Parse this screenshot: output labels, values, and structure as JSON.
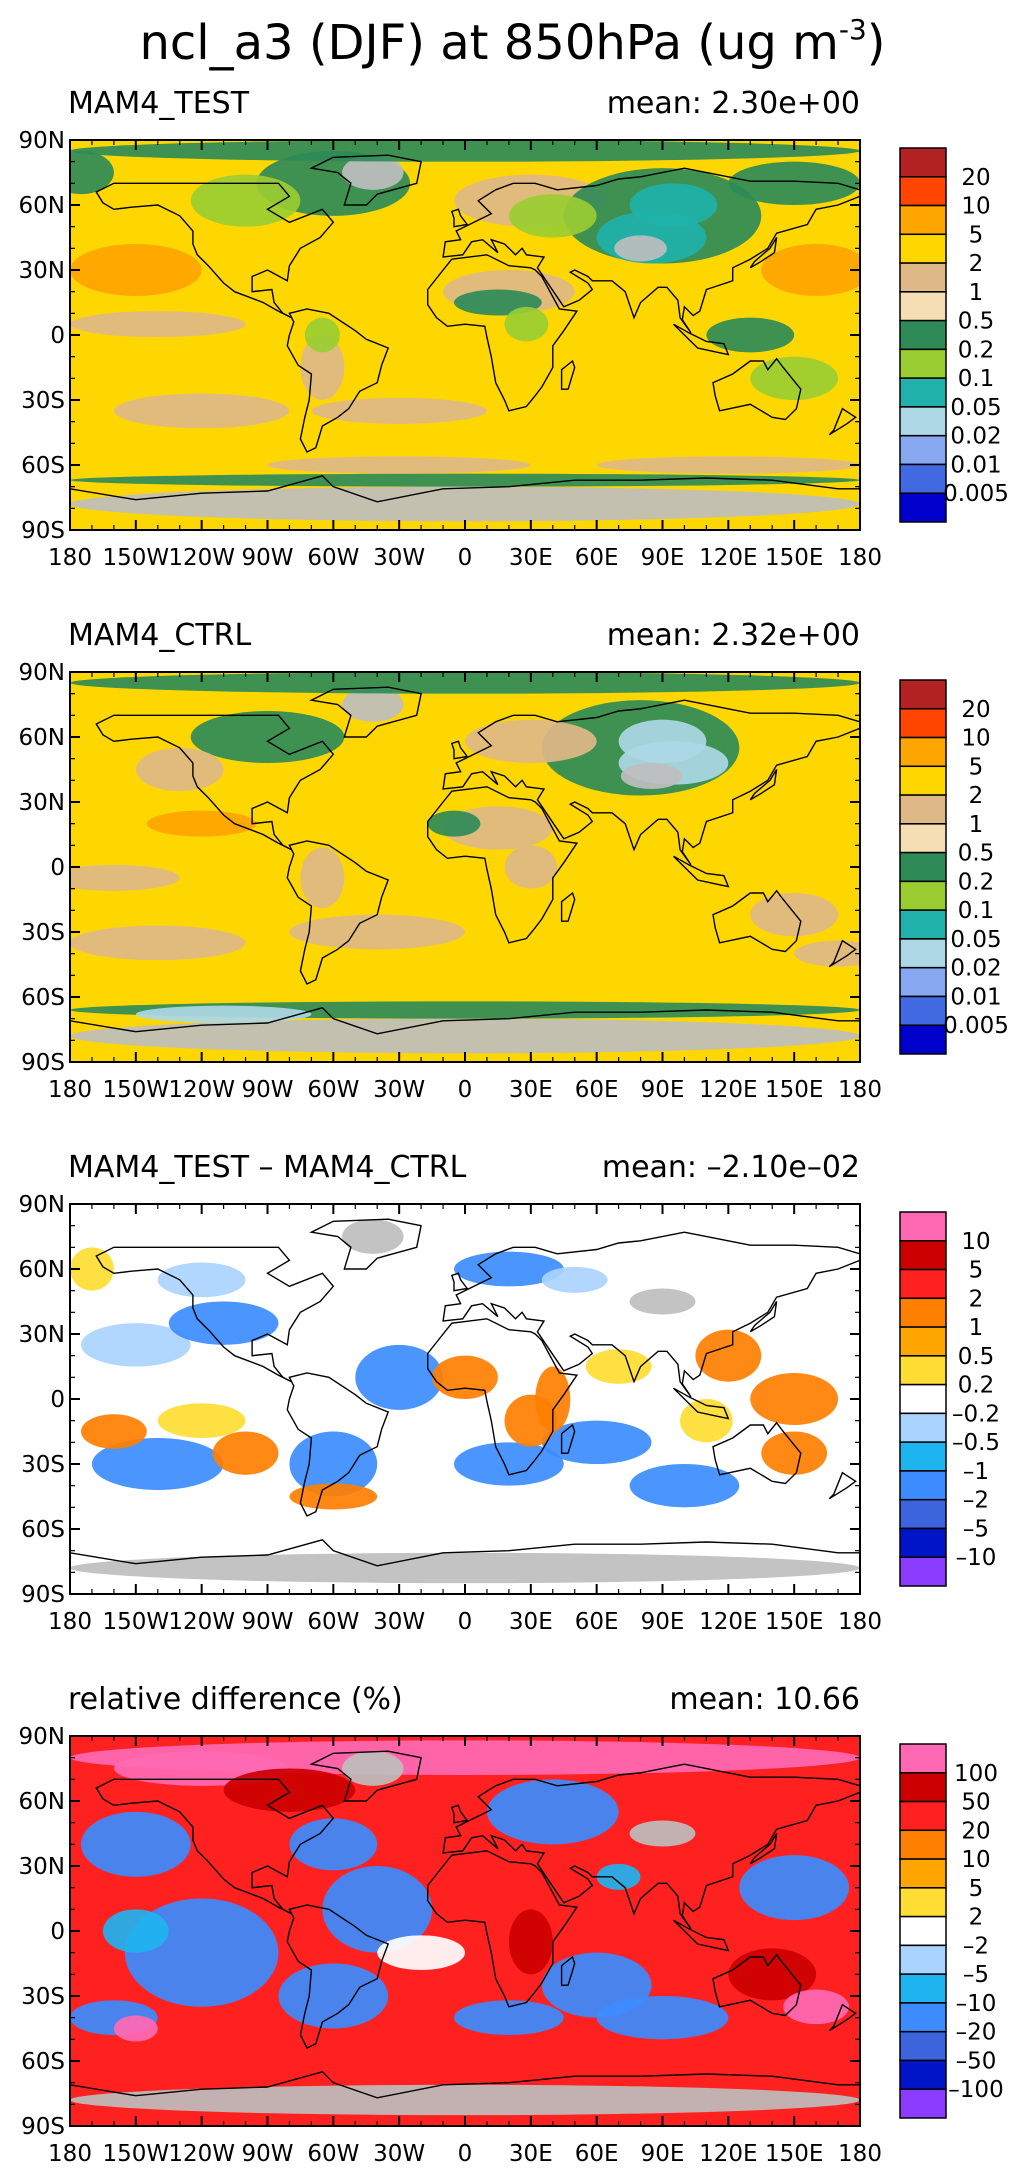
{
  "title": {
    "main": "ncl_a3 (DJF) at 850hPa (ug m",
    "superscript": "-3",
    "close": ")"
  },
  "chart_data": [
    {
      "type": "heatmap",
      "panel_label": "MAM4_TEST",
      "mean_text": "mean: 2.30e+00",
      "x_ticks": [
        "180",
        "150W",
        "120W",
        "90W",
        "60W",
        "30W",
        "0",
        "30E",
        "60E",
        "90E",
        "120E",
        "150E",
        "180"
      ],
      "y_ticks": [
        "90S",
        "60S",
        "30S",
        "0",
        "30N",
        "60N",
        "90N"
      ],
      "xlim": [
        -180,
        180
      ],
      "ylim": [
        -90,
        90
      ],
      "legend_labels": [
        "20",
        "10",
        "5",
        "2",
        "1",
        "0.5",
        "0.2",
        "0.1",
        "0.05",
        "0.02",
        "0.01",
        "0.005"
      ],
      "legend_colors": [
        "#b22222",
        "#ff4500",
        "#ffa500",
        "#ffd700",
        "#deb887",
        "#f5deb3",
        "#2e8b57",
        "#9acd32",
        "#20b2aa",
        "#add8e6",
        "#87a7f0",
        "#4169e1",
        "#0000cd"
      ]
    },
    {
      "type": "heatmap",
      "panel_label": "MAM4_CTRL",
      "mean_text": "mean: 2.32e+00",
      "x_ticks": [
        "180",
        "150W",
        "120W",
        "90W",
        "60W",
        "30W",
        "0",
        "30E",
        "60E",
        "90E",
        "120E",
        "150E",
        "180"
      ],
      "y_ticks": [
        "90S",
        "60S",
        "30S",
        "0",
        "30N",
        "60N",
        "90N"
      ],
      "xlim": [
        -180,
        180
      ],
      "ylim": [
        -90,
        90
      ],
      "legend_labels": [
        "20",
        "10",
        "5",
        "2",
        "1",
        "0.5",
        "0.2",
        "0.1",
        "0.05",
        "0.02",
        "0.01",
        "0.005"
      ],
      "legend_colors": [
        "#b22222",
        "#ff4500",
        "#ffa500",
        "#ffd700",
        "#deb887",
        "#f5deb3",
        "#2e8b57",
        "#9acd32",
        "#20b2aa",
        "#add8e6",
        "#87a7f0",
        "#4169e1",
        "#0000cd"
      ]
    },
    {
      "type": "heatmap",
      "panel_label": "MAM4_TEST – MAM4_CTRL",
      "mean_text": "mean: –2.10e–02",
      "x_ticks": [
        "180",
        "150W",
        "120W",
        "90W",
        "60W",
        "30W",
        "0",
        "30E",
        "60E",
        "90E",
        "120E",
        "150E",
        "180"
      ],
      "y_ticks": [
        "90S",
        "60S",
        "30S",
        "0",
        "30N",
        "60N",
        "90N"
      ],
      "xlim": [
        -180,
        180
      ],
      "ylim": [
        -90,
        90
      ],
      "legend_labels": [
        "10",
        "5",
        "2",
        "1",
        "0.5",
        "0.2",
        "–0.2",
        "–0.5",
        "–1",
        "–2",
        "–5",
        "–10"
      ],
      "legend_colors": [
        "#ff69b4",
        "#cc0000",
        "#ff2020",
        "#ff7f00",
        "#ffa500",
        "#ffdd33",
        "#ffffff",
        "#aad4ff",
        "#1eb4f0",
        "#3c8cff",
        "#3c64dc",
        "#0014c8",
        "#8c3cff"
      ]
    },
    {
      "type": "heatmap",
      "panel_label": "relative difference (%)",
      "mean_text": "mean: 10.66",
      "x_ticks": [
        "180",
        "150W",
        "120W",
        "90W",
        "60W",
        "30W",
        "0",
        "30E",
        "60E",
        "90E",
        "120E",
        "150E",
        "180"
      ],
      "y_ticks": [
        "90S",
        "60S",
        "30S",
        "0",
        "30N",
        "60N",
        "90N"
      ],
      "xlim": [
        -180,
        180
      ],
      "ylim": [
        -90,
        90
      ],
      "legend_labels": [
        "100",
        "50",
        "20",
        "10",
        "5",
        "2",
        "–2",
        "–5",
        "–10",
        "–20",
        "–50",
        "–100"
      ],
      "legend_colors": [
        "#ff69b4",
        "#cc0000",
        "#ff2020",
        "#ff7f00",
        "#ffa500",
        "#ffdd33",
        "#ffffff",
        "#aad4ff",
        "#1eb4f0",
        "#3c8cff",
        "#3c64dc",
        "#0014c8",
        "#8c3cff"
      ]
    }
  ],
  "background_colors": {
    "panel1": [
      "#ffd700",
      "#deb887",
      "#2e8b57",
      "#9acd32",
      "#bebebe",
      "#20b2aa",
      "#add8e6",
      "#ffa500"
    ],
    "panel2": [
      "#ffd700",
      "#deb887",
      "#2e8b57",
      "#9acd32",
      "#bebebe",
      "#add8e6",
      "#ffa500"
    ],
    "panel3": [
      "#ffffff",
      "#aad4ff",
      "#3c8cff",
      "#ffdd33",
      "#ff7f00",
      "#bebebe"
    ],
    "panel4": [
      "#ff2020",
      "#3c8cff",
      "#ff69b4",
      "#ffffff",
      "#bebebe",
      "#cc0000",
      "#1eb4f0"
    ]
  }
}
